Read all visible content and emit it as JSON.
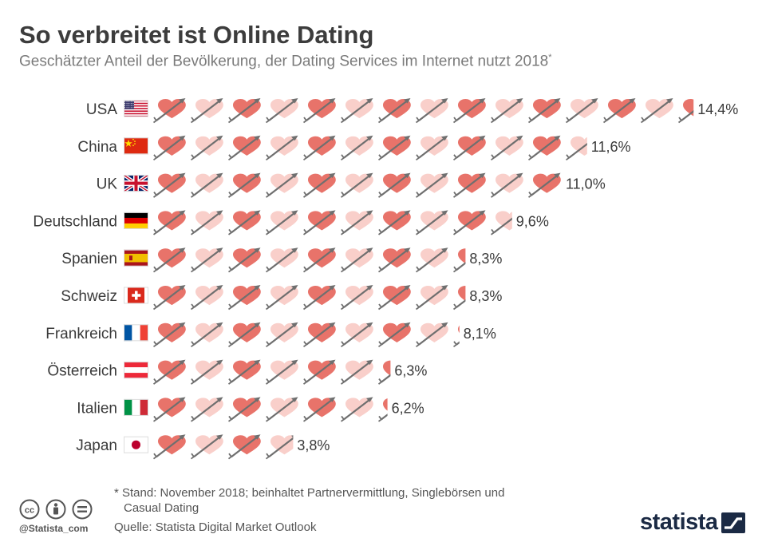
{
  "title": "So verbreitet ist Online Dating",
  "subtitle": "Geschätzter Anteil der Bevölkerung, der Dating Services im Internet nutzt 2018",
  "subtitle_marker": "*",
  "footnote": {
    "line1": "* Stand: November 2018; beinhaltet Partnervermittlung, Singlebörsen und",
    "line2": "Casual Dating"
  },
  "source": "Quelle: Statista Digital Market Outlook",
  "credit": "@Statista_com",
  "logo": "statista",
  "icons": {
    "license": [
      "cc-icon",
      "by-icon",
      "nd-icon"
    ],
    "heart": "heart-with-arrow-icon"
  },
  "colors": {
    "heart_dark": "#e8736a",
    "heart_light": "#f9cfca",
    "arrow": "#6f6f6f",
    "logo": "#1b2a44"
  },
  "chart_data": {
    "type": "bar",
    "unit": "%",
    "value_per_icon": 1,
    "categories": [
      "USA",
      "China",
      "UK",
      "Deutschland",
      "Spanien",
      "Schweiz",
      "Frankreich",
      "Österreich",
      "Italien",
      "Japan"
    ],
    "values": [
      14.4,
      11.6,
      11.0,
      9.6,
      8.3,
      8.3,
      8.1,
      6.3,
      6.2,
      3.8
    ],
    "value_labels": [
      "14,4%",
      "11,6%",
      "11,0%",
      "9,6%",
      "8,3%",
      "8,3%",
      "8,1%",
      "6,3%",
      "6,2%",
      "3,8%"
    ],
    "flags": [
      "flag-usa",
      "flag-china",
      "flag-uk",
      "flag-germany",
      "flag-spain",
      "flag-switzerland",
      "flag-france",
      "flag-austria",
      "flag-italy",
      "flag-japan"
    ],
    "xlabel": "",
    "ylabel": ""
  }
}
